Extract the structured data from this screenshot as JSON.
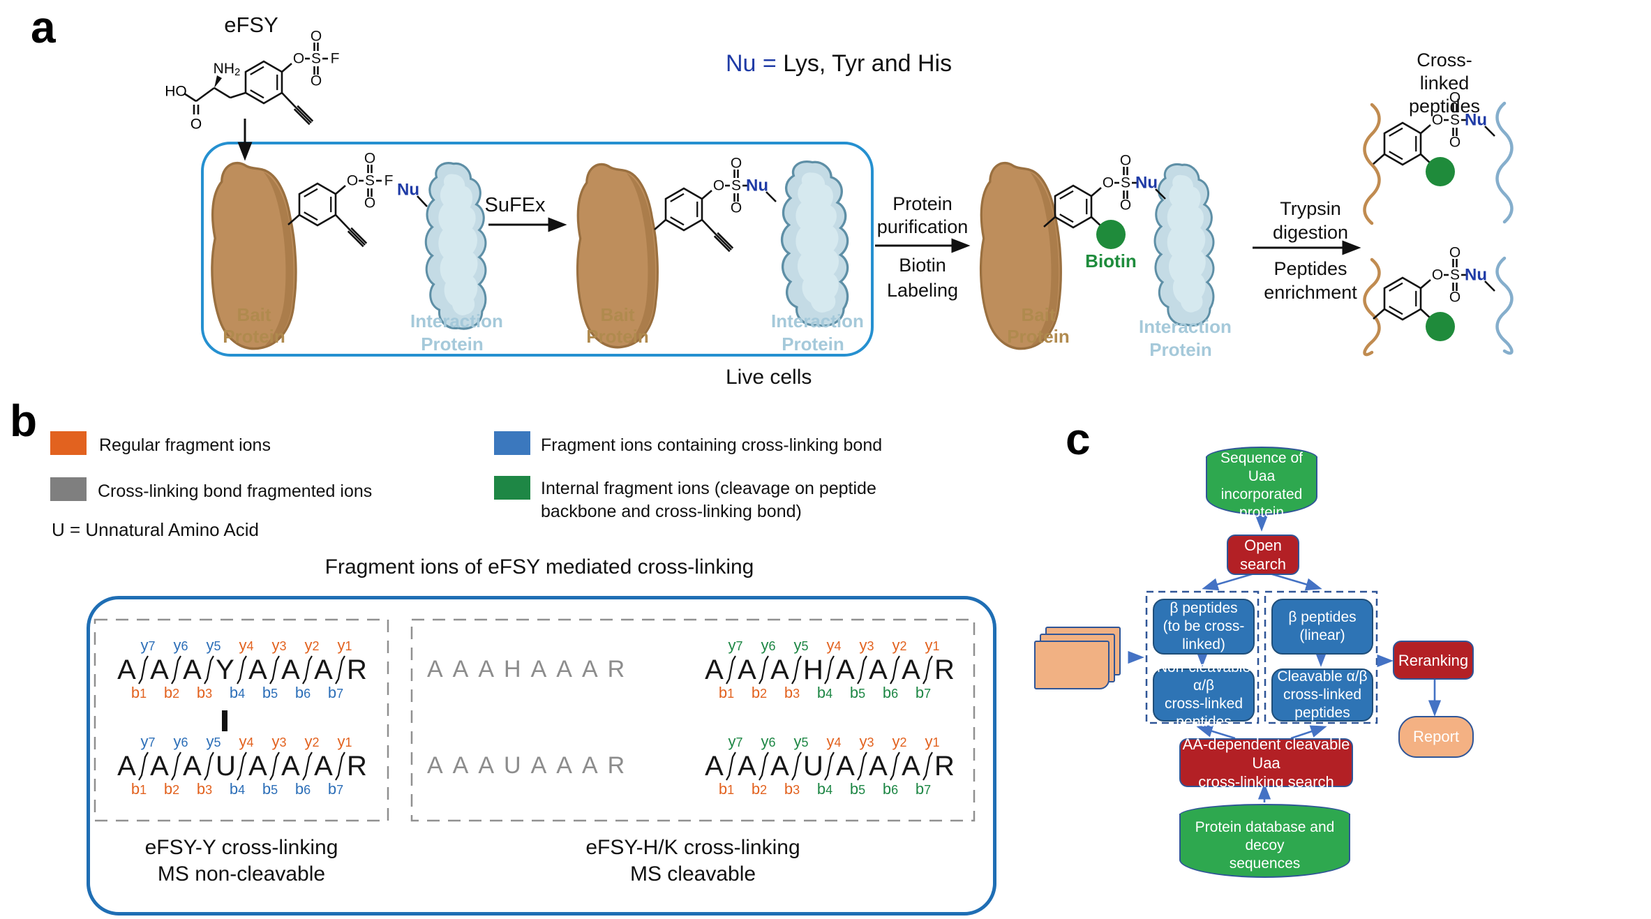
{
  "panel_a": {
    "label": "a",
    "compound_name": "eFSY",
    "nu_legend_prefix": "Nu =",
    "nu_legend_rest": " Lys, Tyr and His",
    "sufex": "SuFEx",
    "live_cells": "Live cells",
    "bait_protein": "Bait Protein",
    "interaction_protein": "Interaction\nProtein",
    "protein_purification": "Protein\npurification",
    "biotin_labeling": "Biotin\nLabeling",
    "trypsin_digestion": "Trypsin\ndigestion",
    "peptides_enrichment": "Peptides\nenrichment",
    "crosslinked_peptides": "Cross-linked\npeptides",
    "biotin_label": "Biotin",
    "atoms": {
      "HO": "HO",
      "NH": "NH",
      "two": "2",
      "O": "O",
      "S": "S",
      "F": "F",
      "Nu": "Nu"
    },
    "colors": {
      "nu_blue": "#1F3BA6",
      "biotin_green": "#1E8C3C",
      "bait_brown": "#B08A4E",
      "interaction_blue": "#A5C9DA"
    }
  },
  "panel_b": {
    "label": "b",
    "legend": [
      {
        "color": "#E2621F",
        "label": "Regular fragment ions"
      },
      {
        "color": "#3B78BE",
        "label": "Fragment ions containing cross-linking bond"
      },
      {
        "color": "#7F7F7F",
        "label": "Cross-linking bond fragmented ions"
      },
      {
        "color": "#1E8745",
        "label": "Internal fragment ions (cleavage on peptide backbone and cross-linking bond)"
      }
    ],
    "u_note": "U = Unnatural Amino Acid",
    "title": "Fragment ions of eFSY mediated cross-linking",
    "fragment_blocks": {
      "colors": {
        "o": "#E2621F",
        "b": "#2D6FB8",
        "g": "#1E8745"
      },
      "y_prefix": "y",
      "b_prefix": "b",
      "left": {
        "rows": [
          "AAAYAAAR",
          "AAAUAAAR"
        ],
        "y_colors": [
          "b",
          "b",
          "b",
          "o",
          "o",
          "o",
          "o"
        ],
        "b_colors": [
          "o",
          "o",
          "o",
          "b",
          "b",
          "b",
          "b"
        ],
        "caption": "eFSY-Y cross-linking\nMS non-cleavable"
      },
      "middle_gray": {
        "rows": [
          "AAAHAAAR",
          "AAAUAAAR"
        ]
      },
      "right": {
        "rows": [
          "AAAHAAAR",
          "AAAUAAAR"
        ],
        "y_colors": [
          "g",
          "g",
          "g",
          "o",
          "o",
          "o",
          "o"
        ],
        "b_colors": [
          "o",
          "o",
          "o",
          "g",
          "g",
          "g",
          "g"
        ],
        "caption": "eFSY-H/K cross-linking\nMS cleavable"
      }
    }
  },
  "panel_c": {
    "label": "c",
    "nodes": {
      "db_top": "Sequence of Uaa\nincorporated protein",
      "open_search": "Open search",
      "beta_crosslinked": "β peptides\n(to be cross-linked)",
      "beta_linear": "β peptides\n(linear)",
      "noncleavable": "Non-cleavable α/β\ncross-linked peptides",
      "cleavable": "Cleavable α/β\ncross-linked peptides",
      "reranking": "Reranking",
      "report": "Report",
      "aa_search": "AA-dependent cleavable Uaa\ncross-linking search",
      "db_bottom": "Protein database and decoy\nsequences"
    }
  }
}
